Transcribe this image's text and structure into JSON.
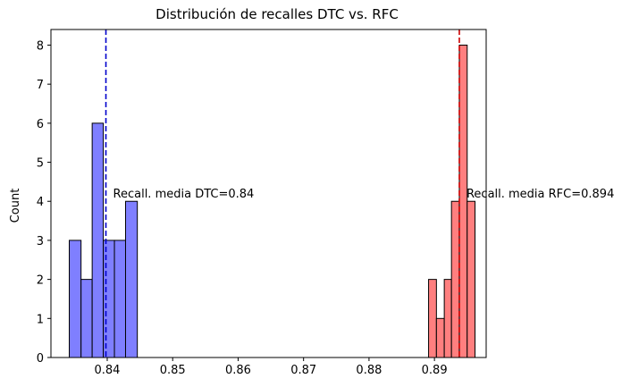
{
  "chart_data": {
    "type": "histogram",
    "title": "Distribución de recalles DTC vs. RFC",
    "xlabel": "",
    "ylabel": "Count",
    "xlim": [
      0.8314,
      0.8979
    ],
    "ylim": [
      0,
      8.4
    ],
    "xticks": [
      "0.84",
      "0.85",
      "0.86",
      "0.87",
      "0.88",
      "0.89"
    ],
    "yticks": [
      "0",
      "1",
      "2",
      "3",
      "4",
      "5",
      "6",
      "7",
      "8"
    ],
    "grid": false,
    "series": [
      {
        "color": "#7f7fff",
        "edge_color": "#000000",
        "bins": [
          {
            "x0": 0.8342,
            "x1": 0.836,
            "count": 3
          },
          {
            "x0": 0.836,
            "x1": 0.8377,
            "count": 2
          },
          {
            "x0": 0.8377,
            "x1": 0.8394,
            "count": 6
          },
          {
            "x0": 0.8394,
            "x1": 0.8411,
            "count": 3
          },
          {
            "x0": 0.8411,
            "x1": 0.8428,
            "count": 3
          },
          {
            "x0": 0.8428,
            "x1": 0.8446,
            "count": 4
          }
        ],
        "mean": 0.8398,
        "mean_line_color": "#0000cc",
        "annotation": "Recall. media DTC=0.84"
      },
      {
        "color": "#ff7f7f",
        "edge_color": "#000000",
        "bins": [
          {
            "x0": 0.8891,
            "x1": 0.8903,
            "count": 2
          },
          {
            "x0": 0.8903,
            "x1": 0.8915,
            "count": 1
          },
          {
            "x0": 0.8915,
            "x1": 0.8926,
            "count": 2
          },
          {
            "x0": 0.8926,
            "x1": 0.8938,
            "count": 4
          },
          {
            "x0": 0.8938,
            "x1": 0.895,
            "count": 8
          },
          {
            "x0": 0.895,
            "x1": 0.8962,
            "count": 4
          }
        ],
        "mean": 0.8938,
        "mean_line_color": "#cc0000",
        "annotation": "Recall. media RFC=0.894"
      }
    ]
  }
}
